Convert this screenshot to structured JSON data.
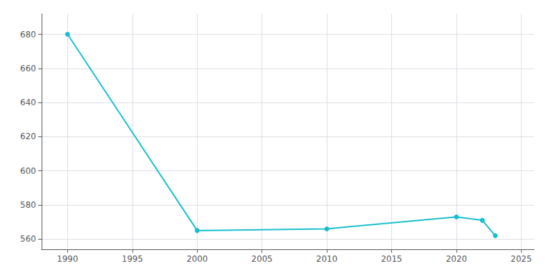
{
  "chart_data": {
    "type": "line",
    "x": [
      1990,
      2000,
      2010,
      2020,
      2022,
      2023
    ],
    "values": [
      680,
      565,
      566,
      573,
      571,
      562
    ],
    "color": "#17BECF",
    "marker": "circle",
    "xlim": [
      1988,
      2026
    ],
    "ylim": [
      554,
      692
    ],
    "xticks": [
      1990,
      1995,
      2000,
      2005,
      2010,
      2015,
      2020,
      2025
    ],
    "yticks": [
      560,
      580,
      600,
      620,
      640,
      660,
      680
    ],
    "grid": true
  }
}
